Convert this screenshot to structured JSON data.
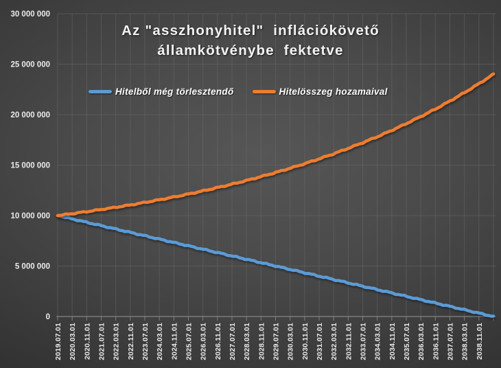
{
  "title": {
    "line1": "Az \"asszhonyhitel\"  inflációkövető",
    "line2": "államkötvénybe  fektetve"
  },
  "legend": {
    "items": [
      {
        "label": "Hitelből még törlesztendő",
        "color": "#5B9BD5"
      },
      {
        "label": "Hitelösszeg hozamaival",
        "color": "#ED7D31"
      }
    ]
  },
  "colors": {
    "background_center": "#565656",
    "background_edge": "#232323",
    "gridline": "#6a6a6a",
    "axis": "#8f8f8f",
    "text": "#ebebeb",
    "series_blue": "#5B9BD5",
    "series_orange": "#ED7D31"
  },
  "chart_data": {
    "type": "line",
    "title": "Az \"asszhonyhitel\" inflációkövető államkötvénybe fektetve",
    "xlabel": "",
    "ylabel": "",
    "ylim": [
      0,
      30000000
    ],
    "grid": true,
    "legend_position": "top",
    "y_tick_labels": [
      "0",
      "5 000 000",
      "10 000 000",
      "15 000 000",
      "20 000 000",
      "25 000 000",
      "30 000 000"
    ],
    "y_tick_values": [
      0,
      5000000,
      10000000,
      15000000,
      20000000,
      25000000,
      30000000
    ],
    "x_tick_labels": [
      "2019.07.01",
      "2020.03.01",
      "2020.11.01",
      "2021.07.01",
      "2022.03.01",
      "2022.11.01",
      "2023.07.01",
      "2024.03.01",
      "2024.11.01",
      "2025.07.01",
      "2026.03.01",
      "2026.11.01",
      "2027.07.01",
      "2028.03.01",
      "2028.11.01",
      "2029.07.01",
      "2030.03.01",
      "2030.11.01",
      "2031.07.01",
      "2032.03.01",
      "2032.11.01",
      "2033.07.01",
      "2034.03.01",
      "2034.11.01",
      "2035.07.01",
      "2036.03.01",
      "2036.11.01",
      "2037.07.01",
      "2038.03.01",
      "2038.11.01"
    ],
    "x_step_months": 8,
    "x_total_months": 240,
    "series": [
      {
        "name": "Hitelből még törlesztendő",
        "color": "#5B9BD5",
        "values": [
          10000000,
          9666667,
          9333333,
          9000000,
          8666667,
          8333333,
          8000000,
          7666667,
          7333333,
          7000000,
          6666667,
          6333333,
          6000000,
          5666667,
          5333333,
          5000000,
          4666667,
          4333333,
          4000000,
          3666667,
          3333333,
          3000000,
          2666667,
          2333333,
          2000000,
          1666667,
          1333333,
          1000000,
          666667,
          333333,
          0
        ]
      },
      {
        "name": "Hitelösszeg hozamaival",
        "color": "#ED7D31",
        "values": [
          10000000,
          10190000,
          10390000,
          10600000,
          10820000,
          11050000,
          11300000,
          11560000,
          11840000,
          12130000,
          12440000,
          12770000,
          13110000,
          13470000,
          13860000,
          14260000,
          14690000,
          15140000,
          15620000,
          16120000,
          16660000,
          17220000,
          17810000,
          18440000,
          19110000,
          19810000,
          20550000,
          21340000,
          22180000,
          23060000,
          24000000
        ]
      }
    ]
  }
}
